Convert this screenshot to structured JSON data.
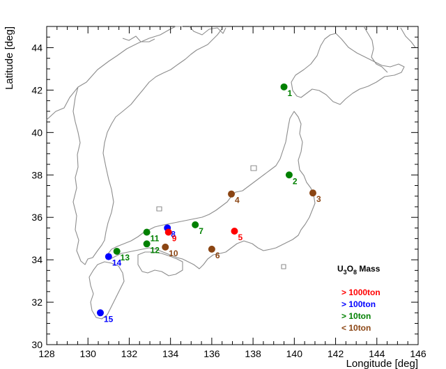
{
  "chart_data": {
    "type": "scatter",
    "title": "",
    "xlabel": "Longitude [deg]",
    "ylabel": "Latitude [deg]",
    "xlim": [
      128,
      146
    ],
    "ylim": [
      30,
      45
    ],
    "x_ticks": [
      "128",
      "130",
      "132",
      "134",
      "136",
      "138",
      "140",
      "142",
      "144",
      "146"
    ],
    "y_ticks": [
      "30",
      "32",
      "34",
      "36",
      "38",
      "40",
      "42",
      "44"
    ],
    "legend": {
      "title_parts": [
        "U",
        "3",
        "O",
        "8",
        " Mass"
      ],
      "placement": "lower-right",
      "entries": [
        {
          "label": "> 1000ton",
          "color": "#ff0000"
        },
        {
          "label": "> 100ton",
          "color": "#0000ff"
        },
        {
          "label": "> 10ton",
          "color": "#008000"
        },
        {
          "label": "< 10ton",
          "color": "#8b4513"
        }
      ]
    },
    "categories": {
      "large": "#ff0000",
      "medium": "#0000ff",
      "small": "#008000",
      "tiny": "#8b4513"
    },
    "points": [
      {
        "id": "1",
        "lon": 139.5,
        "lat": 42.15,
        "cat": "small"
      },
      {
        "id": "2",
        "lon": 139.75,
        "lat": 38.0,
        "cat": "small"
      },
      {
        "id": "3",
        "lon": 140.9,
        "lat": 37.15,
        "cat": "tiny"
      },
      {
        "id": "4",
        "lon": 136.95,
        "lat": 37.1,
        "cat": "tiny"
      },
      {
        "id": "5",
        "lon": 137.1,
        "lat": 35.35,
        "cat": "large"
      },
      {
        "id": "6",
        "lon": 136.0,
        "lat": 34.5,
        "cat": "tiny"
      },
      {
        "id": "7",
        "lon": 135.2,
        "lat": 35.65,
        "cat": "small"
      },
      {
        "id": "8",
        "lon": 133.85,
        "lat": 35.5,
        "cat": "medium"
      },
      {
        "id": "9",
        "lon": 133.9,
        "lat": 35.3,
        "cat": "large"
      },
      {
        "id": "10",
        "lon": 133.75,
        "lat": 34.6,
        "cat": "tiny"
      },
      {
        "id": "11",
        "lon": 132.85,
        "lat": 35.3,
        "cat": "small"
      },
      {
        "id": "12",
        "lon": 132.85,
        "lat": 34.75,
        "cat": "small"
      },
      {
        "id": "13",
        "lon": 131.4,
        "lat": 34.4,
        "cat": "small"
      },
      {
        "id": "14",
        "lon": 131.0,
        "lat": 34.15,
        "cat": "medium"
      },
      {
        "id": "15",
        "lon": 130.6,
        "lat": 31.5,
        "cat": "medium"
      }
    ]
  }
}
